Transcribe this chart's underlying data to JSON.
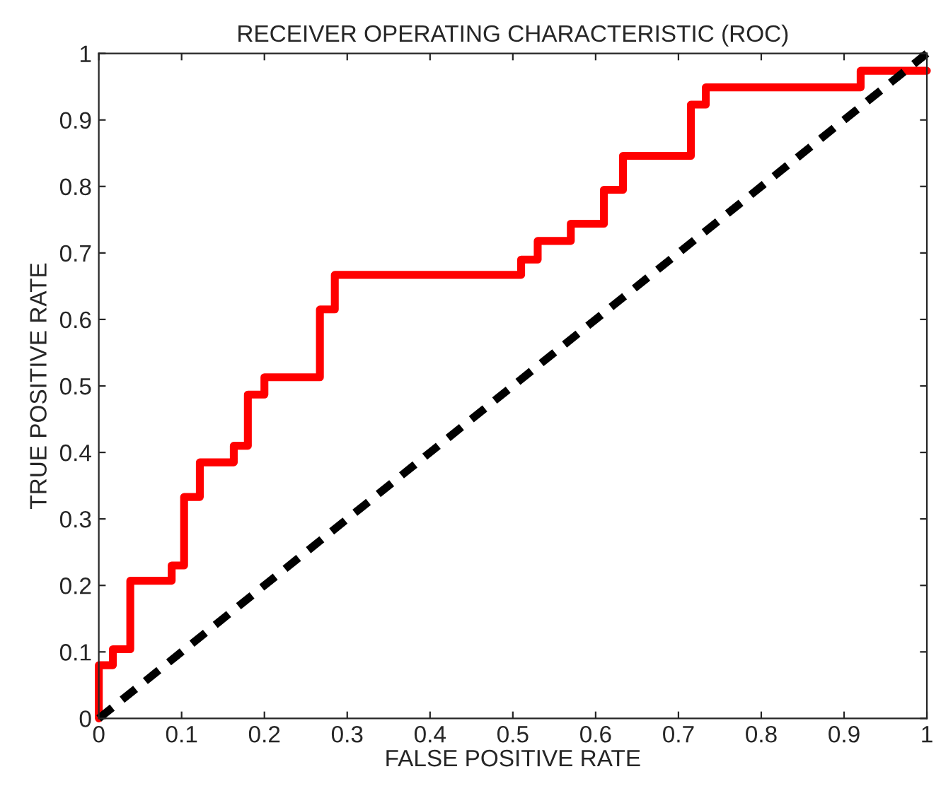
{
  "chart_data": {
    "type": "step",
    "title": "RECEIVER OPERATING CHARACTERISTIC (ROC)",
    "xlabel": "FALSE POSITIVE RATE",
    "ylabel": "TRUE POSITIVE RATE",
    "series": [
      {
        "color": "#ff0000",
        "line_style": "solid",
        "x": [
          0,
          0,
          0.017,
          0.038,
          0.088,
          0.103,
          0.122,
          0.163,
          0.18,
          0.2,
          0.267,
          0.285,
          0.51,
          0.53,
          0.57,
          0.61,
          0.633,
          0.715,
          0.733,
          0.92,
          1
        ],
        "values": [
          0,
          0.08,
          0.104,
          0.207,
          0.23,
          0.333,
          0.385,
          0.41,
          0.487,
          0.513,
          0.615,
          0.667,
          0.69,
          0.718,
          0.744,
          0.795,
          0.846,
          0.923,
          0.949,
          0.974,
          0.974
        ]
      },
      {
        "type": "line",
        "color": "#000000",
        "line_style": "dashed",
        "x": [
          0,
          1
        ],
        "values": [
          0,
          1
        ]
      }
    ],
    "xlim": [
      0,
      1
    ],
    "ylim": [
      0,
      1
    ],
    "xticks": [
      0,
      0.1,
      0.2,
      0.3,
      0.4,
      0.5,
      0.6,
      0.7,
      0.8,
      0.9,
      1
    ],
    "yticks": [
      0,
      0.1,
      0.2,
      0.3,
      0.4,
      0.5,
      0.6,
      0.7,
      0.8,
      0.9,
      1
    ],
    "grid": false,
    "legend": false
  }
}
